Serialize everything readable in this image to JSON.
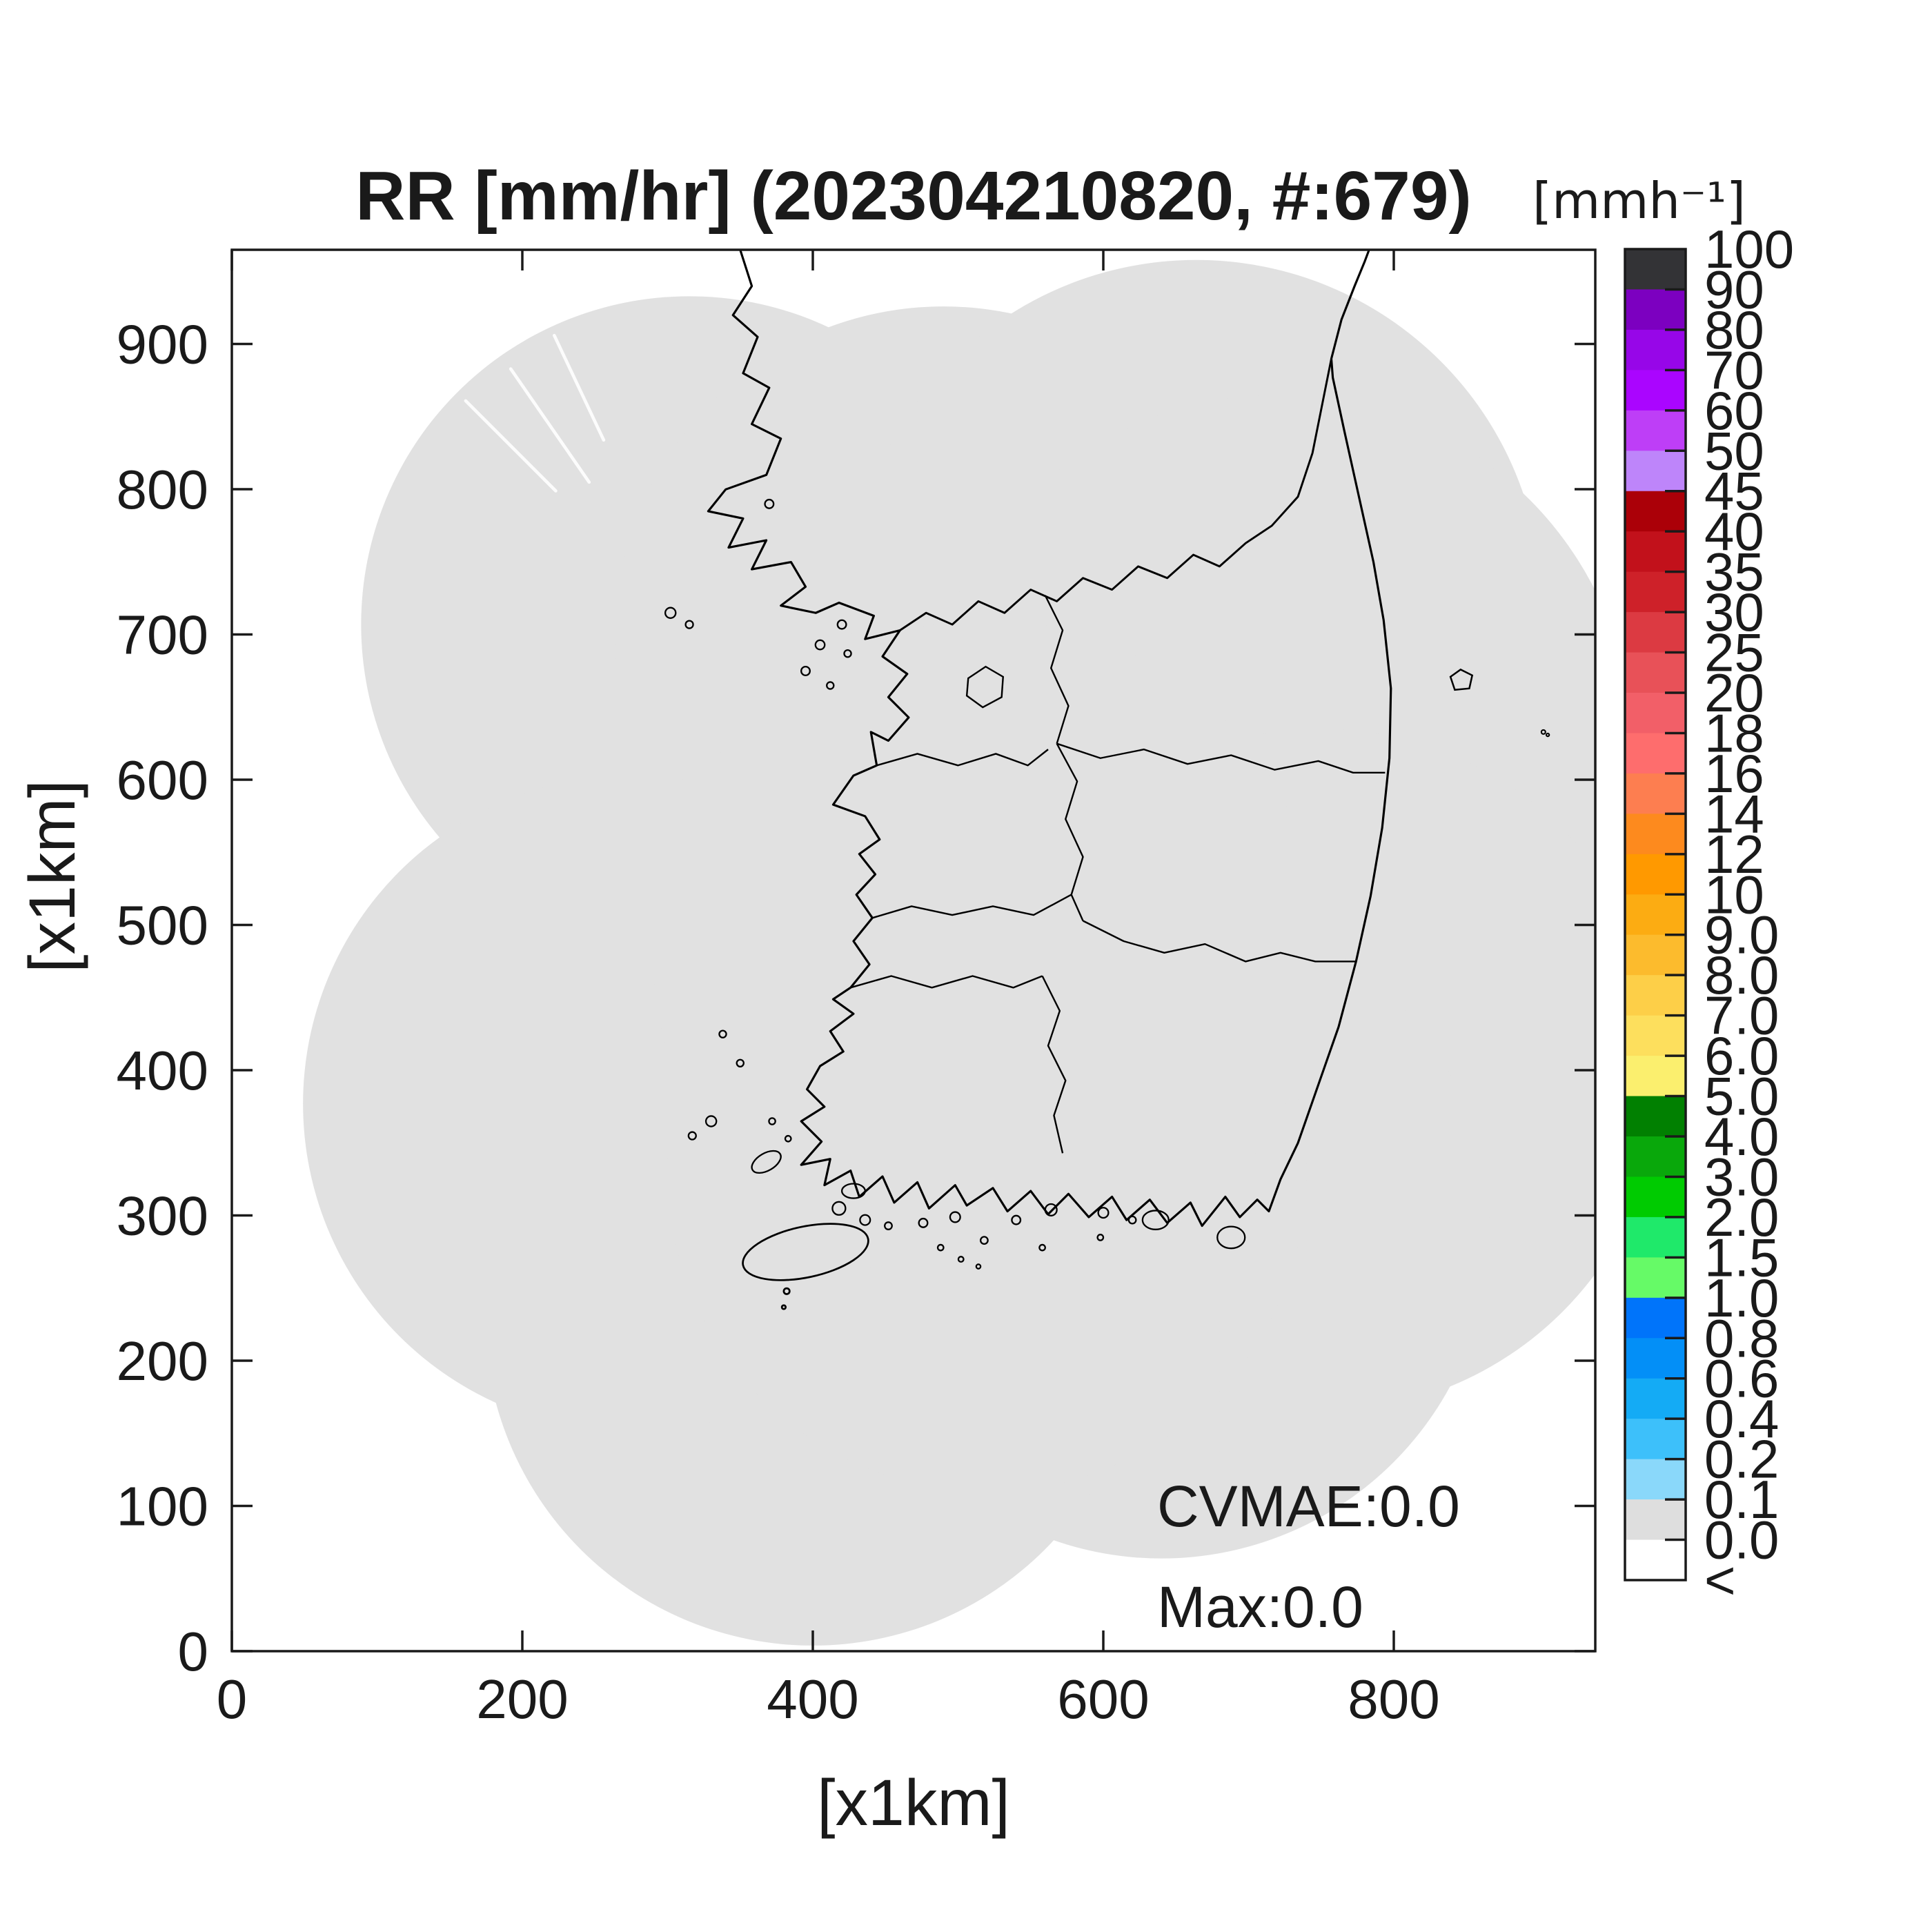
{
  "figure": {
    "title": "RR [mm/hr] (202304210820, #:679)"
  },
  "axes": {
    "xlabel": "[x1km]",
    "ylabel": "[x1km]",
    "x_ticks": [
      0,
      200,
      400,
      600,
      800
    ],
    "y_ticks": [
      0,
      100,
      200,
      300,
      400,
      500,
      600,
      700,
      800,
      900
    ]
  },
  "annotations": {
    "cvmae": "CVMAE:0.0",
    "max": "Max:0.0"
  },
  "colorbar": {
    "title": "[mmh⁻¹]",
    "tick_labels": [
      "100",
      "90",
      "80",
      "70",
      "60",
      "50",
      "45",
      "40",
      "35",
      "30",
      "25",
      "20",
      "18",
      "16",
      "14",
      "12",
      "10",
      "9.0",
      "8.0",
      "7.0",
      "6.0",
      "5.0",
      "4.0",
      "3.0",
      "2.0",
      "1.5",
      "1.0",
      "0.8",
      "0.6",
      "0.4",
      "0.2",
      "0.1",
      "0.0",
      "<"
    ],
    "segment_colors": [
      "#333336",
      "#7c00c0",
      "#9706e8",
      "#aa05ff",
      "#be3ef7",
      "#be85fa",
      "#ab0008",
      "#c2111b",
      "#ce2129",
      "#dc3a42",
      "#e85158",
      "#f25f68",
      "#fe6d6d",
      "#fd7e50",
      "#fd8a1e",
      "#ff9900",
      "#fcac12",
      "#fcbb2d",
      "#fdcf48",
      "#fddf5d",
      "#fbef6e",
      "#018001",
      "#09a80b",
      "#00cb01",
      "#1fe96a",
      "#66fa67",
      "#0074fa",
      "#038ff7",
      "#14abf5",
      "#3dc0fa",
      "#8ad8fa",
      "#dedede",
      "#ffffff"
    ]
  },
  "map": {
    "coverage_color": "#e1e1e1",
    "outline_color": "#000000",
    "background_color": "#ffffff",
    "frame_color": "#1a1a1a"
  },
  "chart_data": {
    "type": "heatmap",
    "title": "RR [mm/hr] (202304210820, #:679)",
    "timestamp": "202304210820",
    "sample_count": 679,
    "xlabel": "[x1km]",
    "ylabel": "[x1km]",
    "xlim": [
      0,
      939
    ],
    "ylim": [
      0,
      965
    ],
    "x_ticks": [
      0,
      200,
      400,
      600,
      800
    ],
    "y_ticks": [
      0,
      100,
      200,
      300,
      400,
      500,
      600,
      700,
      800,
      900
    ],
    "grid": false,
    "legend_position": "right-colorbar",
    "colorbar_title": "[mmh⁻¹]",
    "colorbar_levels": [
      0.0,
      0.1,
      0.2,
      0.4,
      0.6,
      0.8,
      1.0,
      1.5,
      2.0,
      3.0,
      4.0,
      5.0,
      6.0,
      7.0,
      8.0,
      9.0,
      10,
      12,
      14,
      16,
      18,
      20,
      25,
      30,
      35,
      40,
      45,
      50,
      60,
      70,
      80,
      90,
      100
    ],
    "cvmae": 0.0,
    "max_value": 0.0,
    "values_all_zero": true,
    "coverage_shown_as": "gray union of radar range circles over Korean peninsula map"
  }
}
